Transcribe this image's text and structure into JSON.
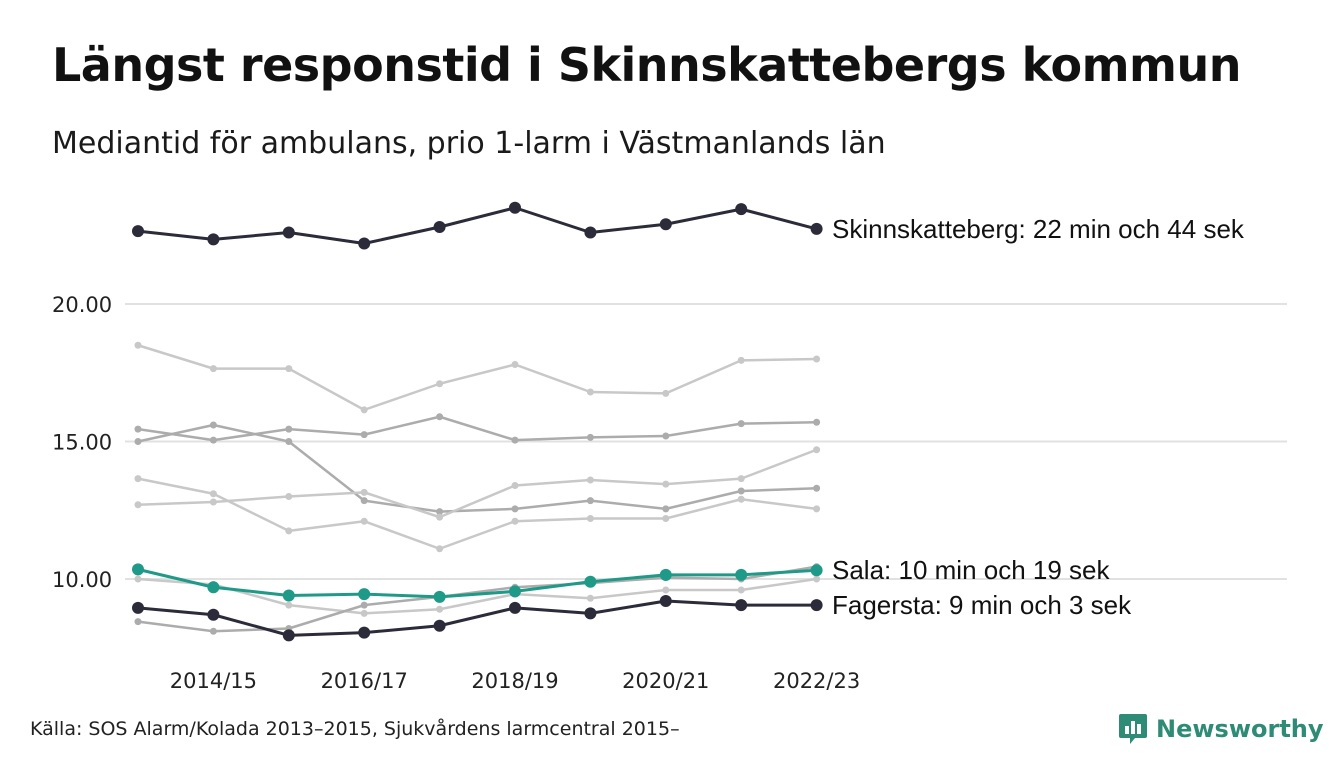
{
  "header": {
    "title": "Längst responstid i Skinnskattebergs kommun",
    "subtitle": "Mediantid för ambulans, prio 1-larm i Västmanlands län"
  },
  "footer": {
    "source": "Källa: SOS Alarm/Kolada 2013–2015, Sjukvårdens larmcentral 2015–",
    "brand": "Newsworthy"
  },
  "colors": {
    "highlight_dark": "#2b2b3a",
    "highlight_teal": "#1f9a88",
    "other_light": "#c8c8c8",
    "other_mid": "#acacac",
    "grid": "#e1e1e1",
    "brand": "#2e8b75"
  },
  "chart_data": {
    "type": "line",
    "x": [
      "2013/14",
      "2014/15",
      "2015/16",
      "2016/17",
      "2017/18",
      "2018/19",
      "2019/20",
      "2020/21",
      "2021/22",
      "2022/23"
    ],
    "x_tick_labels": [
      "2014/15",
      "2016/17",
      "2018/19",
      "2020/21",
      "2022/23"
    ],
    "y_ticks": [
      10,
      15,
      20
    ],
    "y_tick_labels": [
      "10.00",
      "15.00",
      "20.00"
    ],
    "ylim": [
      7.5,
      24.5
    ],
    "grid": true,
    "highlighted": [
      {
        "name": "Skinnskatteberg",
        "label": "Skinnskatteberg: 22 min och 44 sek",
        "color": "#2b2b3a",
        "values": [
          22.65,
          22.35,
          22.6,
          22.2,
          22.8,
          23.5,
          22.6,
          22.9,
          23.45,
          22.73
        ]
      },
      {
        "name": "Sala",
        "label": "Sala: 10 min och 19 sek",
        "color": "#1f9a88",
        "values": [
          10.35,
          9.7,
          9.4,
          9.45,
          9.35,
          9.55,
          9.9,
          10.15,
          10.15,
          10.32
        ]
      },
      {
        "name": "Fagersta",
        "label": "Fagersta: 9 min och 3 sek",
        "color": "#2b2b3a",
        "values": [
          8.95,
          8.7,
          7.95,
          8.05,
          8.3,
          8.95,
          8.75,
          9.2,
          9.05,
          9.05
        ]
      }
    ],
    "others": [
      {
        "color": "#c8c8c8",
        "values": [
          18.5,
          17.65,
          17.65,
          16.15,
          17.1,
          17.8,
          16.8,
          16.75,
          17.95,
          18.0
        ]
      },
      {
        "color": "#acacac",
        "values": [
          15.45,
          15.05,
          15.45,
          15.25,
          15.9,
          15.05,
          15.15,
          15.2,
          15.65,
          15.7
        ]
      },
      {
        "color": "#acacac",
        "values": [
          15.0,
          15.6,
          15.0,
          12.85,
          12.45,
          12.55,
          12.85,
          12.55,
          13.2,
          13.3
        ]
      },
      {
        "color": "#c8c8c8",
        "values": [
          13.65,
          13.1,
          11.75,
          12.1,
          11.1,
          12.1,
          12.2,
          12.2,
          12.9,
          12.55
        ]
      },
      {
        "color": "#c8c8c8",
        "values": [
          12.7,
          12.8,
          13.0,
          13.15,
          12.25,
          13.4,
          13.6,
          13.45,
          13.65,
          14.7
        ]
      },
      {
        "color": "#c8c8c8",
        "values": [
          10.0,
          9.8,
          9.05,
          8.75,
          8.9,
          9.45,
          9.3,
          9.6,
          9.6,
          10.0
        ]
      },
      {
        "color": "#acacac",
        "values": [
          8.45,
          8.1,
          8.2,
          9.05,
          9.35,
          9.7,
          9.85,
          10.05,
          10.0,
          10.45
        ]
      }
    ]
  }
}
